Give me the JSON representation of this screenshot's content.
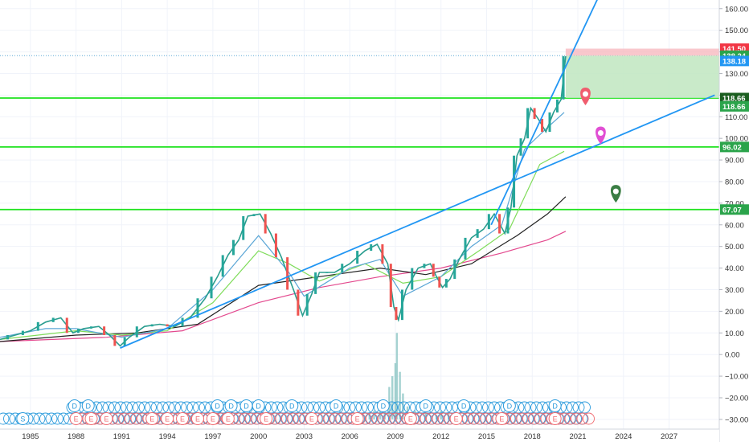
{
  "chart_data": {
    "type": "line",
    "description_series": "price",
    "x_ticks": [
      "1985",
      "1988",
      "1991",
      "1994",
      "1997",
      "2000",
      "2003",
      "2006",
      "2009",
      "2012",
      "2015",
      "2018",
      "2021",
      "2024",
      "2027"
    ],
    "y_ticks": [
      "160.00",
      "150.00",
      "140.00",
      "130.00",
      "120.00",
      "110.00",
      "100.00",
      "90.00",
      "80.00",
      "70.00",
      "60.00",
      "50.00",
      "40.00",
      "30.00",
      "20.00",
      "10.00",
      "0.00",
      "−10.00",
      "−20.00",
      "−30.00"
    ],
    "xlim": [
      1983,
      2030.3
    ],
    "ylim": [
      -34.5,
      164
    ],
    "price": [
      [
        1983,
        7
      ],
      [
        1984,
        9
      ],
      [
        1985,
        11
      ],
      [
        1986,
        15
      ],
      [
        1987,
        17
      ],
      [
        1987.8,
        10
      ],
      [
        1988.5,
        12
      ],
      [
        1989.5,
        13
      ],
      [
        1990.2,
        9
      ],
      [
        1990.9,
        4
      ],
      [
        1991.5,
        8
      ],
      [
        1992.5,
        13
      ],
      [
        1993.5,
        14
      ],
      [
        1994.5,
        13
      ],
      [
        1995.5,
        17
      ],
      [
        1996.5,
        26
      ],
      [
        1997.3,
        36
      ],
      [
        1998,
        46
      ],
      [
        1998.7,
        53
      ],
      [
        1999.3,
        64
      ],
      [
        2000.1,
        65
      ],
      [
        2000.8,
        56
      ],
      [
        2001.5,
        45
      ],
      [
        2002.3,
        30
      ],
      [
        2002.9,
        18
      ],
      [
        2003.5,
        28
      ],
      [
        2004,
        38
      ],
      [
        2005,
        38
      ],
      [
        2006,
        42
      ],
      [
        2007,
        48
      ],
      [
        2007.8,
        51
      ],
      [
        2008.5,
        42
      ],
      [
        2008.9,
        22
      ],
      [
        2009.2,
        16
      ],
      [
        2009.7,
        30
      ],
      [
        2010.5,
        40
      ],
      [
        2011.3,
        42
      ],
      [
        2011.7,
        36
      ],
      [
        2012.1,
        31
      ],
      [
        2012.6,
        35
      ],
      [
        2013.2,
        44
      ],
      [
        2014,
        54
      ],
      [
        2014.8,
        58
      ],
      [
        2015.5,
        65
      ],
      [
        2016.2,
        56
      ],
      [
        2016.6,
        68
      ],
      [
        2017,
        92
      ],
      [
        2017.5,
        100
      ],
      [
        2017.9,
        114
      ],
      [
        2018.4,
        109
      ],
      [
        2018.9,
        103
      ],
      [
        2019.4,
        112
      ],
      [
        2019.9,
        118
      ],
      [
        2020.2,
        138
      ]
    ],
    "ma_fast": [
      [
        1983,
        8
      ],
      [
        1986,
        12
      ],
      [
        1988,
        12
      ],
      [
        1991,
        8
      ],
      [
        1994,
        12
      ],
      [
        1997,
        30
      ],
      [
        2000,
        55
      ],
      [
        2002,
        38
      ],
      [
        2003,
        27
      ],
      [
        2006,
        40
      ],
      [
        2008,
        44
      ],
      [
        2009.5,
        27
      ],
      [
        2012,
        36
      ],
      [
        2014,
        50
      ],
      [
        2016,
        60
      ],
      [
        2017.5,
        95
      ],
      [
        2019,
        105
      ],
      [
        2020.1,
        112
      ]
    ],
    "ma_mid": [
      [
        1983,
        7
      ],
      [
        1988,
        11
      ],
      [
        1991,
        9
      ],
      [
        1994,
        11
      ],
      [
        1997,
        24
      ],
      [
        2000,
        48
      ],
      [
        2002,
        42
      ],
      [
        2004,
        34
      ],
      [
        2007,
        42
      ],
      [
        2009.5,
        33
      ],
      [
        2012,
        36
      ],
      [
        2014.5,
        48
      ],
      [
        2016.5,
        58
      ],
      [
        2018.5,
        88
      ],
      [
        2020.1,
        94
      ]
    ],
    "ma_slow": [
      [
        1983,
        6
      ],
      [
        1988,
        9
      ],
      [
        1992,
        10
      ],
      [
        1996,
        14
      ],
      [
        2000,
        32
      ],
      [
        2004,
        36
      ],
      [
        2008,
        40
      ],
      [
        2011,
        37
      ],
      [
        2014,
        42
      ],
      [
        2017,
        55
      ],
      [
        2019,
        65
      ],
      [
        2020.2,
        73
      ]
    ],
    "ma_200": [
      [
        1983,
        6
      ],
      [
        1990,
        8
      ],
      [
        1995,
        11
      ],
      [
        2000,
        24
      ],
      [
        2004,
        31
      ],
      [
        2008,
        36
      ],
      [
        2012,
        40
      ],
      [
        2016,
        47
      ],
      [
        2019,
        53
      ],
      [
        2020.2,
        57
      ]
    ],
    "volume": [
      [
        2007.3,
        3
      ],
      [
        2007.6,
        4
      ],
      [
        2008,
        6
      ],
      [
        2008.3,
        8
      ],
      [
        2008.6,
        15
      ],
      [
        2008.8,
        20
      ],
      [
        2009,
        26
      ],
      [
        2009.1,
        40
      ],
      [
        2009.3,
        22
      ],
      [
        2009.5,
        12
      ],
      [
        2009.8,
        6
      ],
      [
        2010.3,
        4
      ],
      [
        2011,
        3
      ],
      [
        2011.7,
        2
      ],
      [
        2012,
        4
      ],
      [
        2012.5,
        3
      ],
      [
        2013,
        2
      ]
    ],
    "trendlines": [
      {
        "p1": [
          1990.9,
          3
        ],
        "p2": [
          2030,
          120
        ]
      },
      {
        "p1": [
          2015.3,
          60
        ],
        "p2": [
          2023.2,
          178
        ]
      }
    ],
    "horizontal_levels": [
      {
        "value": 118.66,
        "label": "118.66"
      },
      {
        "value": 96.02,
        "label": "96.02"
      },
      {
        "value": 67.07,
        "label": "67.07"
      }
    ],
    "position_box": {
      "entry": 138.24,
      "stop": 141.5,
      "target": 118.66,
      "x_start": 2020.2,
      "x_end": 2030.3
    },
    "price_labels": [
      {
        "value": 141.5,
        "label": "141.50",
        "color": "#f23645"
      },
      {
        "value": 138.24,
        "label": "138.24",
        "color": "#2ba44b"
      },
      {
        "value": 135.8,
        "label": "138.18",
        "color": "#2196f3"
      },
      {
        "value": 118.66,
        "label": "118.66",
        "color": "#1b5e20"
      },
      {
        "value": 114.8,
        "label": "118.66",
        "color": "#2ba44b"
      },
      {
        "value": 96.02,
        "label": "96.02",
        "color": "#2ba44b"
      },
      {
        "value": 67.07,
        "label": "67.07",
        "color": "#2ba44b"
      }
    ],
    "markers": [
      {
        "x": 2021.5,
        "y": 119,
        "color": "#f05d6e"
      },
      {
        "x": 2022.5,
        "y": 101,
        "color": "#e14fd4"
      },
      {
        "x": 2023.5,
        "y": 74,
        "color": "#3a7d44"
      }
    ],
    "event_row_d": {
      "letter": "D",
      "years": [
        1987.9,
        1988.8,
        1997.3,
        1998.2,
        1999.2,
        2000,
        2002.2,
        2005.1,
        2008.2,
        2011,
        2013.5,
        2016.5,
        2019.5
      ]
    },
    "event_row_e": {
      "letter": "E",
      "years": [
        1988,
        1989,
        1990,
        1993,
        1994,
        1995,
        1996,
        1997,
        1998,
        2000.5,
        2003.5,
        2006.5,
        2010,
        2013,
        2016,
        2019.5
      ]
    },
    "event_row_s": {
      "letter": "S",
      "years": [
        1984.5
      ]
    }
  }
}
